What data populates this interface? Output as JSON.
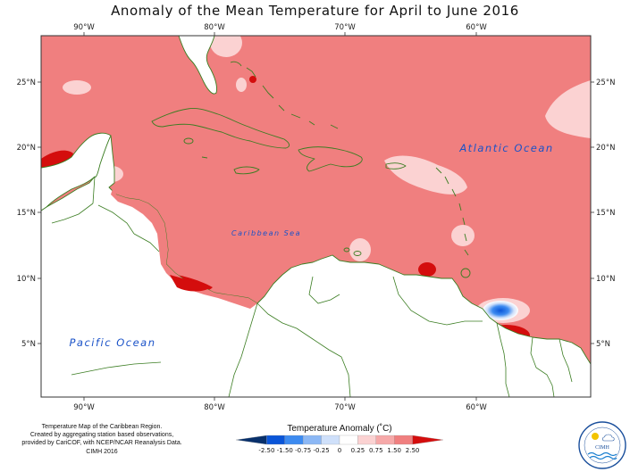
{
  "title": "Anomaly of the Mean Temperature for April to June 2016",
  "lon_labels": [
    "90°W",
    "80°W",
    "70°W",
    "60°W"
  ],
  "lat_labels": [
    "25°N",
    "20°N",
    "15°N",
    "10°N",
    "5°N"
  ],
  "region_labels": {
    "atlantic": "Atlantic Ocean",
    "caribbean": "Caribbean Sea",
    "pacific": "Pacific Ocean"
  },
  "credits": [
    "Temperature Map of the Caribbean Region.",
    "Created by aggregating station based observations,",
    "provided by CariCOF, with NCEP/NCAR Reanalysis Data.",
    "CIMH 2016"
  ],
  "legend": {
    "title": "Temperature Anomaly (˚C)",
    "ticks": [
      "-2.50",
      "-1.50",
      "-0.75",
      "-0.25",
      "0",
      "0.25",
      "0.75",
      "1.50",
      "2.50"
    ],
    "colors": [
      "#08306b",
      "#0a55d8",
      "#3d8bf0",
      "#8cb8f5",
      "#cfe0fa",
      "#ffffff",
      "#fbd2d2",
      "#f6a9a9",
      "#f07f7f",
      "#d40d0d"
    ]
  },
  "logo_text": "CIMH",
  "colors": {
    "base_anomaly": "#f07f7f",
    "light_anomaly": "#fbd2d2",
    "hot_anomaly": "#d40d0d",
    "cold_anomaly": "#0a55d8",
    "coastline": "#3b7d22"
  }
}
